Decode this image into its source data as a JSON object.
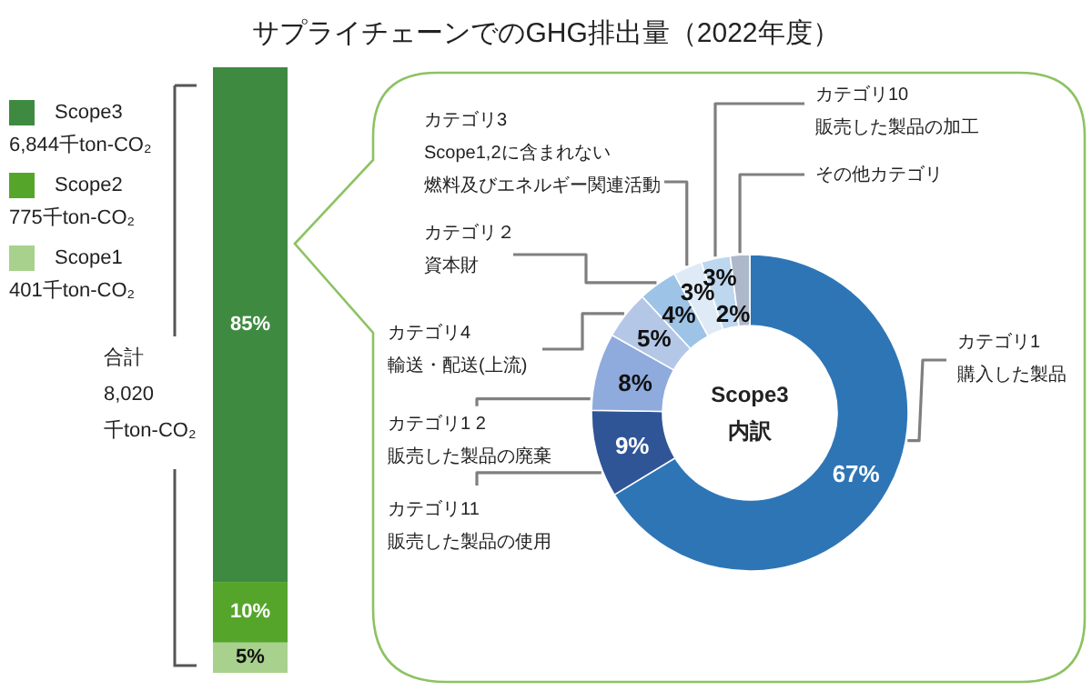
{
  "chart_data": [
    {
      "type": "bar",
      "title": "サプライチェーンでのGHG排出量（2022年度）",
      "categories": [
        null
      ],
      "stacked": true,
      "legend": "left",
      "series": [
        {
          "name": "Scope1",
          "color": "#a9d18e",
          "values": [
            5
          ],
          "value_labels": [
            "5%"
          ]
        },
        {
          "name": "Scope2",
          "color": "#56a52b",
          "values": [
            10
          ],
          "value_labels": [
            "10%"
          ]
        },
        {
          "name": "Scope3",
          "color": "#3f8a41",
          "values": [
            85
          ],
          "value_labels": [
            "85%"
          ]
        }
      ],
      "annotations": [
        "401千ton-CO₂",
        "775千ton-CO₂",
        "6,844千ton-CO₂",
        "合計\n8,020\n千ton-CO₂"
      ]
    },
    {
      "type": "donut",
      "categories": [
        "カテゴリ1購入した製品",
        "カテゴリ11販売した製品の使用",
        "カテゴリ1 2販売した製品の廃棄",
        "カテゴリ4輸送・配送(上流)",
        "カテゴリ２資本財",
        "カテゴリ3Scope1,2に含まれない燃料及びエネルギー関連活動",
        "カテゴリ10販売した製品の加工",
        "その他カテゴリ"
      ],
      "values": [
        67,
        9,
        8,
        5,
        4,
        3,
        3,
        2
      ],
      "colors": [
        "#2e75b6",
        "#2f5597",
        "#8faadc",
        "#b4c7e7",
        "#9dc3e6",
        "#deebf7",
        "#bdd7ee",
        "#adb9ca"
      ],
      "value_labels": [
        "67%",
        "9%",
        "8%",
        "5%",
        "4%",
        "3%",
        "3%",
        "2%"
      ],
      "annotations": [
        "Scope3\n内訳"
      ]
    }
  ]
}
